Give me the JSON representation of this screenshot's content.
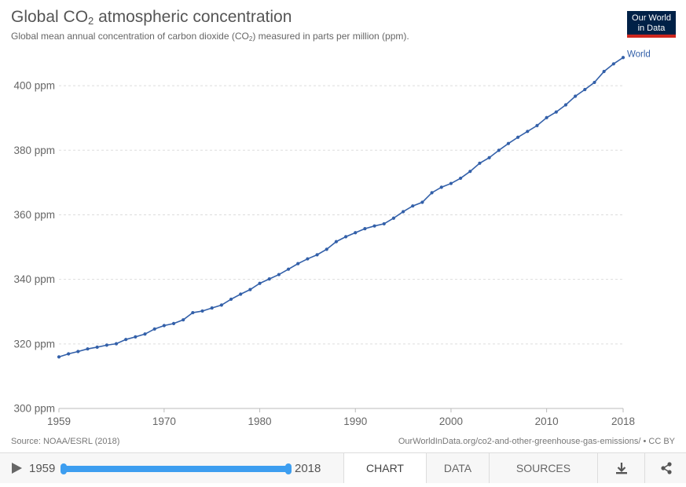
{
  "header": {
    "title_prefix": "Global CO",
    "title_sub": "2",
    "title_suffix": " atmospheric concentration",
    "subtitle_prefix": "Global mean annual concentration of carbon dioxide (CO",
    "subtitle_sub": "2",
    "subtitle_suffix": ") measured in parts per million (ppm).",
    "logo_line1": "Our World",
    "logo_line2": "in Data"
  },
  "footer_text": {
    "source": "Source: NOAA/ESRL (2018)",
    "license": "OurWorldInData.org/co2-and-other-greenhouse-gas-emissions/ • CC BY"
  },
  "controls": {
    "timeline_start": "1959",
    "timeline_end": "2018",
    "tabs": [
      "CHART",
      "DATA",
      "SOURCES"
    ],
    "active_tab": "CHART"
  },
  "colors": {
    "series": "#3360a9",
    "logo_bg": "#002147",
    "logo_accent": "#ce261e",
    "timeline": "#3d9ef0"
  },
  "chart_data": {
    "type": "line",
    "xlim": [
      1959,
      2018
    ],
    "ylim": [
      300,
      410
    ],
    "x_ticks": [
      1959,
      1970,
      1980,
      1990,
      2000,
      2010,
      2018
    ],
    "y_ticks": [
      300,
      320,
      340,
      360,
      380,
      400
    ],
    "y_tick_labels": [
      "300 ppm",
      "320 ppm",
      "340 ppm",
      "360 ppm",
      "380 ppm",
      "400 ppm"
    ],
    "grid": "horizontal dashed",
    "series": [
      {
        "name": "World",
        "x": [
          1959,
          1960,
          1961,
          1962,
          1963,
          1964,
          1965,
          1966,
          1967,
          1968,
          1969,
          1970,
          1971,
          1972,
          1973,
          1974,
          1975,
          1976,
          1977,
          1978,
          1979,
          1980,
          1981,
          1982,
          1983,
          1984,
          1985,
          1986,
          1987,
          1988,
          1989,
          1990,
          1991,
          1992,
          1993,
          1994,
          1995,
          1996,
          1997,
          1998,
          1999,
          2000,
          2001,
          2002,
          2003,
          2004,
          2005,
          2006,
          2007,
          2008,
          2009,
          2010,
          2011,
          2012,
          2013,
          2014,
          2015,
          2016,
          2017,
          2018
        ],
        "values": [
          315.98,
          316.91,
          317.64,
          318.45,
          318.99,
          319.62,
          320.04,
          321.37,
          322.18,
          323.05,
          324.62,
          325.68,
          326.32,
          327.46,
          329.68,
          330.19,
          331.13,
          332.03,
          333.84,
          335.41,
          336.84,
          338.76,
          340.12,
          341.48,
          343.15,
          344.87,
          346.35,
          347.61,
          349.31,
          351.69,
          353.2,
          354.45,
          355.7,
          356.54,
          357.21,
          358.96,
          360.97,
          362.74,
          363.88,
          366.84,
          368.54,
          369.71,
          371.32,
          373.45,
          375.98,
          377.7,
          379.98,
          382.09,
          384.02,
          385.83,
          387.64,
          390.1,
          391.85,
          394.06,
          396.74,
          398.81,
          401.01,
          404.41,
          406.76,
          408.72
        ]
      }
    ]
  }
}
